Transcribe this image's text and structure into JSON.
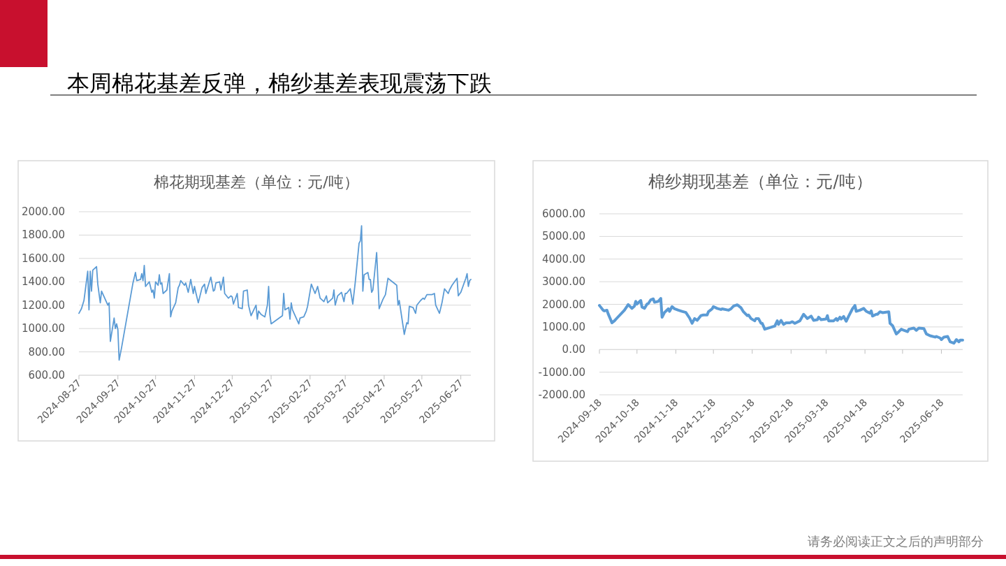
{
  "chart_data": [
    {
      "type": "line",
      "title": "棉花期现基差（单位：元/吨）",
      "annotations": [
        "本周棉花基差反弹，棉纱基差表现震荡下跌"
      ],
      "x": [
        "2024-08-27",
        "2024-08-29",
        "2024-08-31",
        "2024-09-03",
        "2024-09-04",
        "2024-09-05",
        "2024-09-06",
        "2024-09-07",
        "2024-09-10",
        "2024-09-11",
        "2024-09-13",
        "2024-09-14",
        "2024-09-19",
        "2024-09-20",
        "2024-09-21",
        "2024-09-24",
        "2024-09-25",
        "2024-09-26",
        "2024-09-27",
        "2024-09-28",
        "2024-09-30",
        "2024-10-09",
        "2024-10-11",
        "2024-10-12",
        "2024-10-15",
        "2024-10-16",
        "2024-10-17",
        "2024-10-18",
        "2024-10-19",
        "2024-10-22",
        "2024-10-24",
        "2024-10-25",
        "2024-10-26",
        "2024-10-27",
        "2024-10-29",
        "2024-10-30",
        "2024-10-31",
        "2024-11-01",
        "2024-11-02",
        "2024-11-05",
        "2024-11-07",
        "2024-11-08",
        "2024-11-09",
        "2024-11-12",
        "2024-11-14",
        "2024-11-15",
        "2024-11-16",
        "2024-11-19",
        "2024-11-20",
        "2024-11-22",
        "2024-11-24",
        "2024-11-26",
        "2024-11-27",
        "2024-11-28",
        "2024-11-30",
        "2024-12-03",
        "2024-12-05",
        "2024-12-06",
        "2024-12-10",
        "2024-12-12",
        "2024-12-13",
        "2024-12-14",
        "2024-12-17",
        "2024-12-18",
        "2024-12-20",
        "2024-12-21",
        "2024-12-24",
        "2024-12-26",
        "2024-12-27",
        "2024-12-28",
        "2024-12-31",
        "2025-01-01",
        "2025-01-04",
        "2025-01-05",
        "2025-01-08",
        "2025-01-09",
        "2025-01-11",
        "2025-01-15",
        "2025-01-16",
        "2025-01-17",
        "2025-01-19",
        "2025-01-22",
        "2025-01-24",
        "2025-01-25",
        "2025-01-26",
        "2025-01-27",
        "2025-02-05",
        "2025-02-06",
        "2025-02-07",
        "2025-02-10",
        "2025-02-11",
        "2025-02-12",
        "2025-02-13",
        "2025-02-18",
        "2025-02-19",
        "2025-02-22",
        "2025-02-24",
        "2025-02-25",
        "2025-02-28",
        "2025-03-03",
        "2025-03-05",
        "2025-03-07",
        "2025-03-10",
        "2025-03-12",
        "2025-03-13",
        "2025-03-17",
        "2025-03-18",
        "2025-03-19",
        "2025-03-21",
        "2025-03-24",
        "2025-03-26",
        "2025-03-27",
        "2025-03-28",
        "2025-03-31",
        "2025-04-02",
        "2025-04-04",
        "2025-04-07",
        "2025-04-08",
        "2025-04-09",
        "2025-04-10",
        "2025-04-11",
        "2025-04-14",
        "2025-04-15",
        "2025-04-16",
        "2025-04-17",
        "2025-04-18",
        "2025-04-21",
        "2025-04-23",
        "2025-04-26",
        "2025-04-28",
        "2025-04-30",
        "2025-05-07",
        "2025-05-08",
        "2025-05-09",
        "2025-05-13",
        "2025-05-15",
        "2025-05-16",
        "2025-05-17",
        "2025-05-20",
        "2025-05-22",
        "2025-05-23",
        "2025-05-26",
        "2025-05-28",
        "2025-05-29",
        "2025-05-31",
        "2025-06-04",
        "2025-06-06",
        "2025-06-07",
        "2025-06-10",
        "2025-06-12",
        "2025-06-14",
        "2025-06-17",
        "2025-06-18",
        "2025-06-20",
        "2025-06-24",
        "2025-06-25",
        "2025-06-27",
        "2025-06-29",
        "2025-07-01",
        "2025-07-02",
        "2025-07-03",
        "2025-07-04",
        "2025-07-05"
      ],
      "series": [
        {
          "color": "#5b9bd5",
          "values": [
            1130,
            1170,
            1240,
            1490,
            1160,
            1490,
            1320,
            1500,
            1530,
            1380,
            1220,
            1320,
            1200,
            1220,
            890,
            1090,
            1000,
            1040,
            990,
            730,
            840,
            1390,
            1480,
            1410,
            1420,
            1470,
            1410,
            1540,
            1360,
            1400,
            1310,
            1330,
            1260,
            1400,
            1370,
            1460,
            1380,
            1390,
            1300,
            1330,
            1470,
            1100,
            1150,
            1220,
            1350,
            1370,
            1410,
            1370,
            1390,
            1310,
            1420,
            1300,
            1360,
            1310,
            1220,
            1350,
            1380,
            1300,
            1440,
            1320,
            1330,
            1390,
            1400,
            1330,
            1440,
            1300,
            1260,
            1280,
            1270,
            1210,
            1300,
            1180,
            1170,
            1320,
            1330,
            1200,
            1110,
            1200,
            1080,
            1150,
            1120,
            1100,
            1200,
            1360,
            1120,
            1040,
            1110,
            1300,
            1160,
            1180,
            1080,
            1220,
            1160,
            1040,
            1090,
            1100,
            1150,
            1190,
            1380,
            1300,
            1360,
            1260,
            1230,
            1280,
            1220,
            1260,
            1330,
            1200,
            1280,
            1310,
            1230,
            1300,
            1300,
            1340,
            1210,
            1400,
            1730,
            1750,
            1880,
            1320,
            1460,
            1480,
            1420,
            1420,
            1310,
            1330,
            1650,
            1170,
            1250,
            1290,
            1430,
            1370,
            1200,
            1240,
            950,
            1050,
            1040,
            1190,
            1180,
            1130,
            1200,
            1240,
            1260,
            1250,
            1290,
            1290,
            1300,
            1200,
            1130,
            1220,
            1340,
            1300,
            1330,
            1370,
            1430,
            1280,
            1310,
            1370,
            1430,
            1470,
            1360,
            1410,
            1420
          ]
        }
      ],
      "xlim": [
        "2024-08-27",
        "2025-07-05"
      ],
      "xticks": [
        "2024-08-27",
        "2024-09-27",
        "2024-10-27",
        "2024-11-27",
        "2024-12-27",
        "2025-01-27",
        "2025-02-27",
        "2025-03-27",
        "2025-04-27",
        "2025-05-27",
        "2025-06-27"
      ],
      "ylim": [
        600,
        2000
      ],
      "yticks": [
        {
          "value": 600,
          "label": "600.00"
        },
        {
          "value": 800,
          "label": "800.00"
        },
        {
          "value": 1000,
          "label": "1000.00"
        },
        {
          "value": 1200,
          "label": "1200.00"
        },
        {
          "value": 1400,
          "label": "1400.00"
        },
        {
          "value": 1600,
          "label": "1600.00"
        },
        {
          "value": 1800,
          "label": "1800.00"
        },
        {
          "value": 2000,
          "label": "2000.00"
        }
      ],
      "grid": "y"
    },
    {
      "type": "line",
      "title": "棉纱期现基差（单位：元/吨）",
      "annotations": [
        "请务必阅读正文之后的声明部分"
      ],
      "x": [
        "2024-09-18",
        "2024-09-19",
        "2024-09-21",
        "2024-09-22",
        "2024-09-24",
        "2024-09-25",
        "2024-09-27",
        "2024-09-28",
        "2024-09-30",
        "2024-10-02",
        "2024-10-08",
        "2024-10-11",
        "2024-10-14",
        "2024-10-16",
        "2024-10-17",
        "2024-10-18",
        "2024-10-21",
        "2024-10-22",
        "2024-10-24",
        "2024-10-26",
        "2024-10-27",
        "2024-10-29",
        "2024-10-31",
        "2024-11-01",
        "2024-11-04",
        "2024-11-06",
        "2024-11-07",
        "2024-11-09",
        "2024-11-12",
        "2024-11-13",
        "2024-11-15",
        "2024-11-17",
        "2024-11-20",
        "2024-11-23",
        "2024-11-26",
        "2024-11-29",
        "2024-12-01",
        "2024-12-03",
        "2024-12-05",
        "2024-12-08",
        "2024-12-10",
        "2024-12-13",
        "2024-12-14",
        "2024-12-17",
        "2024-12-18",
        "2024-12-21",
        "2024-12-24",
        "2024-12-25",
        "2024-12-30",
        "2025-01-01",
        "2025-01-03",
        "2025-01-06",
        "2025-01-09",
        "2025-01-11",
        "2025-01-14",
        "2025-01-15",
        "2025-01-17",
        "2025-01-20",
        "2025-01-21",
        "2025-01-23",
        "2025-01-25",
        "2025-01-26",
        "2025-01-28",
        "2025-02-05",
        "2025-02-07",
        "2025-02-08",
        "2025-02-10",
        "2025-02-12",
        "2025-02-14",
        "2025-02-17",
        "2025-02-19",
        "2025-02-21",
        "2025-02-25",
        "2025-02-28",
        "2025-03-03",
        "2025-03-06",
        "2025-03-08",
        "2025-03-11",
        "2025-03-12",
        "2025-03-14",
        "2025-03-18",
        "2025-03-19",
        "2025-03-20",
        "2025-03-24",
        "2025-03-26",
        "2025-03-27",
        "2025-03-29",
        "2025-03-30",
        "2025-04-01",
        "2025-04-03",
        "2025-04-05",
        "2025-04-08",
        "2025-04-10",
        "2025-04-11",
        "2025-04-14",
        "2025-04-17",
        "2025-04-19",
        "2025-04-22",
        "2025-04-23",
        "2025-04-24",
        "2025-04-27",
        "2025-04-28",
        "2025-04-30",
        "2025-05-02",
        "2025-05-07",
        "2025-05-08",
        "2025-05-10",
        "2025-05-13",
        "2025-05-15",
        "2025-05-17",
        "2025-05-19",
        "2025-05-22",
        "2025-05-23",
        "2025-05-27",
        "2025-05-29",
        "2025-05-31",
        "2025-06-04",
        "2025-06-06",
        "2025-06-09",
        "2025-06-13",
        "2025-06-14",
        "2025-06-17",
        "2025-06-18",
        "2025-06-20",
        "2025-06-23",
        "2025-06-25",
        "2025-06-28",
        "2025-06-30",
        "2025-07-02",
        "2025-07-03",
        "2025-07-05"
      ],
      "series": [
        {
          "color": "#5b9bd5",
          "values": [
            1950,
            1880,
            1740,
            1710,
            1740,
            1580,
            1320,
            1180,
            1270,
            1390,
            1740,
            1990,
            1820,
            1920,
            2130,
            2010,
            2170,
            1880,
            1820,
            2010,
            2030,
            2200,
            2240,
            2090,
            2130,
            2260,
            1430,
            1640,
            1800,
            1690,
            1900,
            1800,
            1740,
            1690,
            1640,
            1390,
            1160,
            1370,
            1290,
            1500,
            1530,
            1530,
            1670,
            1800,
            1900,
            1820,
            1770,
            1800,
            1740,
            1800,
            1920,
            1980,
            1850,
            1670,
            1500,
            1530,
            1370,
            1270,
            1370,
            1370,
            1160,
            1160,
            900,
            1040,
            1270,
            1110,
            1290,
            1110,
            1180,
            1180,
            1230,
            1160,
            1270,
            1560,
            1370,
            1480,
            1290,
            1320,
            1430,
            1320,
            1350,
            1500,
            1270,
            1270,
            1370,
            1290,
            1430,
            1350,
            1460,
            1250,
            1480,
            1800,
            1950,
            1690,
            1740,
            1820,
            1690,
            1610,
            1710,
            1480,
            1560,
            1560,
            1670,
            1630,
            1670,
            1160,
            1060,
            690,
            790,
            900,
            850,
            790,
            900,
            950,
            850,
            950,
            930,
            690,
            610,
            550,
            580,
            510,
            440,
            550,
            580,
            340,
            280,
            440,
            340,
            420,
            420
          ]
        }
      ],
      "xlim": [
        "2024-09-18",
        "2025-07-05"
      ],
      "xticks": [
        "2024-09-18",
        "2024-10-18",
        "2024-11-18",
        "2024-12-18",
        "2025-01-18",
        "2025-02-18",
        "2025-03-18",
        "2025-04-18",
        "2025-05-18",
        "2025-06-18"
      ],
      "ylim": [
        -2000,
        6000
      ],
      "yticks": [
        {
          "value": -2000,
          "label": "-2000.00"
        },
        {
          "value": -1000,
          "label": "-1000.00"
        },
        {
          "value": 0,
          "label": "0.00"
        },
        {
          "value": 1000,
          "label": "1000.00"
        },
        {
          "value": 2000,
          "label": "2000.00"
        },
        {
          "value": 3000,
          "label": "3000.00"
        },
        {
          "value": 4000,
          "label": "4000.00"
        },
        {
          "value": 5000,
          "label": "5000.00"
        },
        {
          "value": 6000,
          "label": "6000.00"
        }
      ],
      "grid": "y"
    }
  ]
}
